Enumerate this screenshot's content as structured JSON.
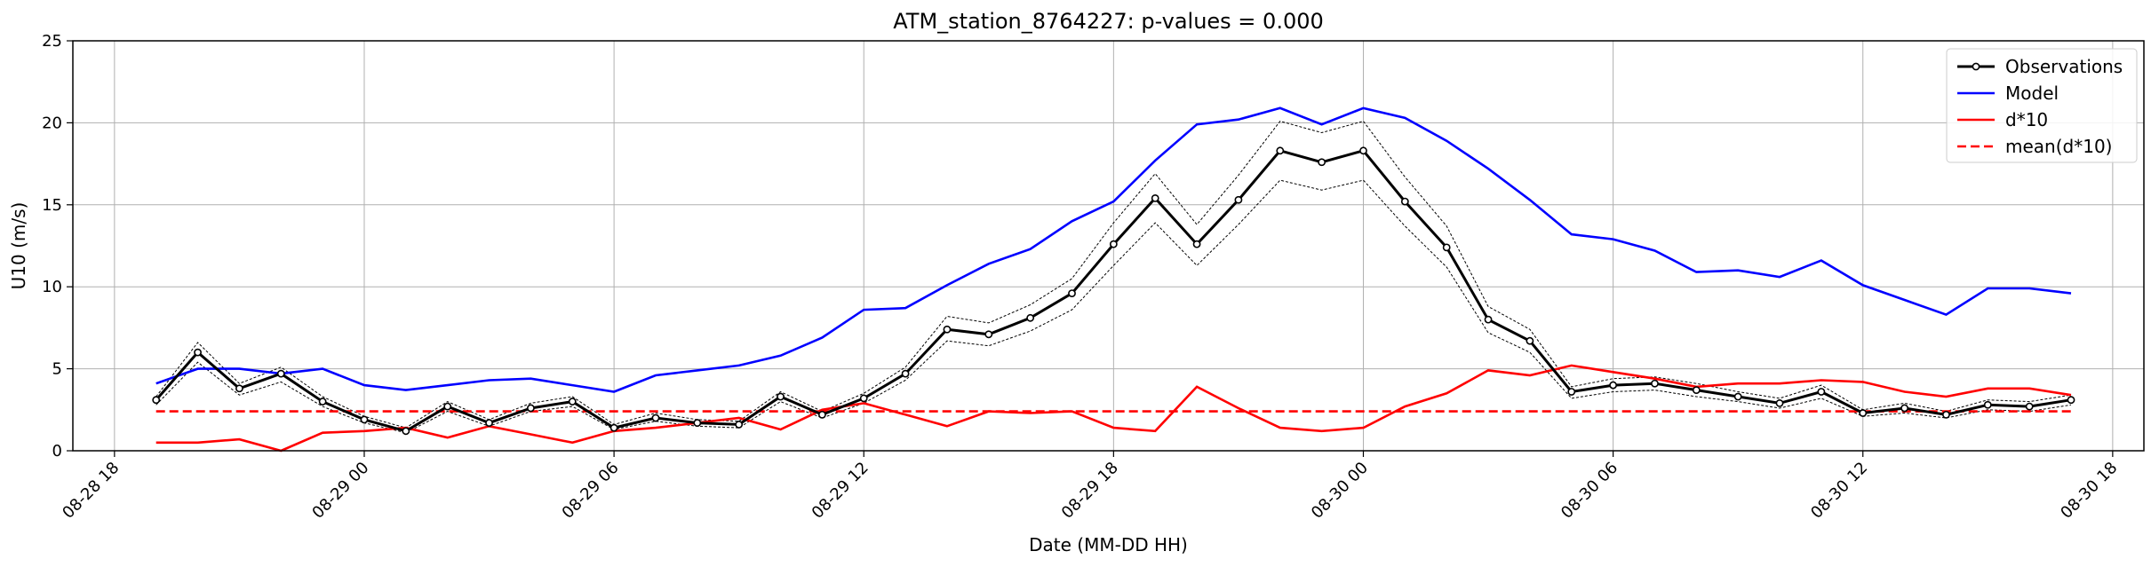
{
  "chart_data": {
    "type": "line",
    "title": "ATM_station_8764227: p-values = 0.000",
    "xlabel": "Date (MM-DD HH)",
    "ylabel": "U10 (m/s)",
    "xlim": [
      "2024-08-28T17:00",
      "2024-08-30T18:45"
    ],
    "ylim": [
      0,
      25
    ],
    "grid": true,
    "legend_position": "top-right",
    "x_ticks": [
      {
        "value": "2024-08-28T18:00",
        "label": "08-28 18"
      },
      {
        "value": "2024-08-29T00:00",
        "label": "08-29 00"
      },
      {
        "value": "2024-08-29T06:00",
        "label": "08-29 06"
      },
      {
        "value": "2024-08-29T12:00",
        "label": "08-29 12"
      },
      {
        "value": "2024-08-29T18:00",
        "label": "08-29 18"
      },
      {
        "value": "2024-08-30T00:00",
        "label": "08-30 00"
      },
      {
        "value": "2024-08-30T06:00",
        "label": "08-30 06"
      },
      {
        "value": "2024-08-30T12:00",
        "label": "08-30 12"
      },
      {
        "value": "2024-08-30T18:00",
        "label": "08-30 18"
      }
    ],
    "y_ticks": [
      0,
      5,
      10,
      15,
      20,
      25
    ],
    "x": [
      "2024-08-28T19:00",
      "2024-08-28T20:00",
      "2024-08-28T21:00",
      "2024-08-28T22:00",
      "2024-08-28T23:00",
      "2024-08-29T00:00",
      "2024-08-29T01:00",
      "2024-08-29T02:00",
      "2024-08-29T03:00",
      "2024-08-29T04:00",
      "2024-08-29T05:00",
      "2024-08-29T06:00",
      "2024-08-29T07:00",
      "2024-08-29T08:00",
      "2024-08-29T09:00",
      "2024-08-29T10:00",
      "2024-08-29T11:00",
      "2024-08-29T12:00",
      "2024-08-29T13:00",
      "2024-08-29T14:00",
      "2024-08-29T15:00",
      "2024-08-29T16:00",
      "2024-08-29T17:00",
      "2024-08-29T18:00",
      "2024-08-29T19:00",
      "2024-08-29T20:00",
      "2024-08-29T21:00",
      "2024-08-29T22:00",
      "2024-08-29T23:00",
      "2024-08-30T00:00",
      "2024-08-30T01:00",
      "2024-08-30T02:00",
      "2024-08-30T03:00",
      "2024-08-30T04:00",
      "2024-08-30T05:00",
      "2024-08-30T06:00",
      "2024-08-30T07:00",
      "2024-08-30T08:00",
      "2024-08-30T09:00",
      "2024-08-30T10:00",
      "2024-08-30T11:00",
      "2024-08-30T12:00",
      "2024-08-30T13:00",
      "2024-08-30T14:00",
      "2024-08-30T15:00",
      "2024-08-30T16:00",
      "2024-08-30T17:00"
    ],
    "series": [
      {
        "name": "Observations",
        "color": "#000000",
        "style": "solid-with-markers",
        "values": [
          3.1,
          6.0,
          3.8,
          4.7,
          3.0,
          1.9,
          1.2,
          2.7,
          1.7,
          2.6,
          3.0,
          1.4,
          2.0,
          1.7,
          1.6,
          3.3,
          2.2,
          3.2,
          4.7,
          7.4,
          7.1,
          8.1,
          9.6,
          12.6,
          15.4,
          12.6,
          15.3,
          18.3,
          17.6,
          18.3,
          15.2,
          12.4,
          8.0,
          6.7,
          3.6,
          4.0,
          4.1,
          3.7,
          3.3,
          2.9,
          3.6,
          2.3,
          2.6,
          2.2,
          2.8,
          2.7,
          3.1
        ]
      },
      {
        "name": "Model",
        "color": "#0000ff",
        "style": "solid",
        "values": [
          4.1,
          5.0,
          5.0,
          4.7,
          5.0,
          4.0,
          3.7,
          4.0,
          4.3,
          4.4,
          4.0,
          3.6,
          4.6,
          4.9,
          5.2,
          5.8,
          6.9,
          8.6,
          8.7,
          10.1,
          11.4,
          12.3,
          14.0,
          15.2,
          17.7,
          19.9,
          20.2,
          20.9,
          19.9,
          20.9,
          20.3,
          18.9,
          17.2,
          15.3,
          13.2,
          12.9,
          12.2,
          10.9,
          11.0,
          10.6,
          11.6,
          10.1,
          9.2,
          8.3,
          9.9,
          9.9,
          9.6
        ]
      },
      {
        "name": "d*10",
        "color": "#ff0000",
        "style": "solid",
        "values": [
          0.5,
          0.5,
          0.7,
          0.0,
          1.1,
          1.2,
          1.4,
          0.8,
          1.5,
          1.0,
          0.5,
          1.2,
          1.4,
          1.7,
          2.0,
          1.3,
          2.5,
          2.9,
          2.2,
          1.5,
          2.4,
          2.3,
          2.4,
          1.4,
          1.2,
          3.9,
          2.6,
          1.4,
          1.2,
          1.4,
          2.7,
          3.5,
          4.9,
          4.6,
          5.2,
          4.8,
          4.4,
          3.9,
          4.1,
          4.1,
          4.3,
          4.2,
          3.6,
          3.3,
          3.8,
          3.8,
          3.4
        ]
      },
      {
        "name": "mean(d*10)",
        "color": "#ff0000",
        "style": "dashed",
        "values": [
          2.4,
          2.4,
          2.4,
          2.4,
          2.4,
          2.4,
          2.4,
          2.4,
          2.4,
          2.4,
          2.4,
          2.4,
          2.4,
          2.4,
          2.4,
          2.4,
          2.4,
          2.4,
          2.4,
          2.4,
          2.4,
          2.4,
          2.4,
          2.4,
          2.4,
          2.4,
          2.4,
          2.4,
          2.4,
          2.4,
          2.4,
          2.4,
          2.4,
          2.4,
          2.4,
          2.4,
          2.4,
          2.4,
          2.4,
          2.4,
          2.4,
          2.4,
          2.4,
          2.4,
          2.4,
          2.4,
          2.4
        ]
      }
    ],
    "confidence_band": {
      "color": "#000000",
      "style": "dotted",
      "upper": [
        3.3,
        6.6,
        4.1,
        5.1,
        3.3,
        2.1,
        1.4,
        3.0,
        1.9,
        2.9,
        3.3,
        1.6,
        2.3,
        1.9,
        1.8,
        3.6,
        2.4,
        3.5,
        5.1,
        8.2,
        7.8,
        8.9,
        10.5,
        13.9,
        16.9,
        13.8,
        16.8,
        20.1,
        19.4,
        20.1,
        16.7,
        13.7,
        8.8,
        7.4,
        3.9,
        4.4,
        4.5,
        4.1,
        3.6,
        3.2,
        4.0,
        2.5,
        2.9,
        2.4,
        3.1,
        3.0,
        3.4
      ],
      "lower": [
        2.8,
        5.4,
        3.4,
        4.2,
        2.7,
        1.7,
        1.1,
        2.4,
        1.5,
        2.4,
        2.7,
        1.3,
        1.8,
        1.5,
        1.4,
        3.0,
        2.0,
        2.9,
        4.3,
        6.7,
        6.4,
        7.3,
        8.6,
        11.3,
        13.9,
        11.3,
        13.8,
        16.5,
        15.9,
        16.5,
        13.7,
        11.2,
        7.2,
        6.0,
        3.2,
        3.6,
        3.7,
        3.3,
        3.0,
        2.6,
        3.2,
        2.1,
        2.3,
        2.0,
        2.5,
        2.4,
        2.8
      ]
    }
  }
}
